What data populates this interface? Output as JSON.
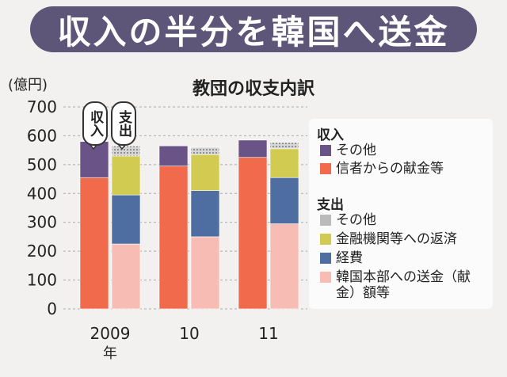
{
  "banner_title": "収入の半分を韓国へ送金",
  "chart_data": {
    "type": "bar",
    "title": "教団の収支内訳",
    "unit_label": "(億円)",
    "ylim": [
      0,
      700
    ],
    "yticks": [
      "700",
      "600",
      "500",
      "400",
      "300",
      "200",
      "100",
      "0"
    ],
    "categories": [
      "2009年",
      "10",
      "11"
    ],
    "income_label": "収入",
    "expense_label": "支出",
    "income": {
      "name": "収入",
      "series": [
        {
          "name": "信者からの献金等",
          "color": "#f06a4b",
          "values": [
            455,
            495,
            525
          ]
        },
        {
          "name": "その他",
          "color": "#6a5487",
          "values": [
            125,
            70,
            60
          ]
        }
      ]
    },
    "expense": {
      "name": "支出",
      "series": [
        {
          "name": "韓国本部への送金（献金）額等",
          "color": "#f7bcb4",
          "values": [
            225,
            250,
            295
          ]
        },
        {
          "name": "経費",
          "color": "#4e6da0",
          "values": [
            170,
            160,
            160
          ]
        },
        {
          "name": "金融機関等への返済",
          "color": "#d2cb52",
          "values": [
            135,
            125,
            100
          ]
        },
        {
          "name": "その他",
          "color": "#bbbbbb",
          "values": [
            35,
            25,
            22
          ]
        }
      ]
    },
    "grid": true
  },
  "legend": {
    "income_heading": "収入",
    "income_items": [
      {
        "label": "その他",
        "color": "#6a5487"
      },
      {
        "label": "信者からの献金等",
        "color": "#f06a4b"
      }
    ],
    "expense_heading": "支出",
    "expense_items": [
      {
        "label": "その他",
        "color": "#bbbbbb"
      },
      {
        "label": "金融機関等への返済",
        "color": "#d2cb52"
      },
      {
        "label": "経費",
        "color": "#4e6da0"
      },
      {
        "label": "韓国本部への送金（献金）額等",
        "color": "#f7bcb4"
      }
    ]
  }
}
